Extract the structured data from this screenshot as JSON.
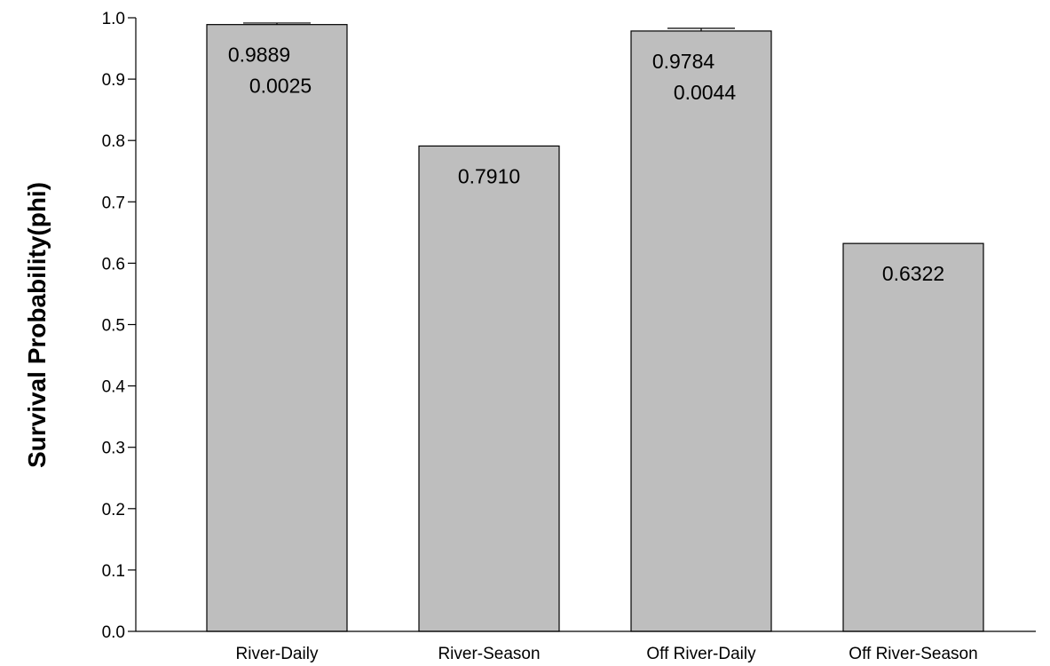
{
  "chart_data": {
    "type": "bar",
    "categories": [
      "River-Daily",
      "River-Season",
      "Off River-Daily",
      "Off River-Season"
    ],
    "values": [
      0.9889,
      0.791,
      0.9784,
      0.6322
    ],
    "errors": [
      0.0025,
      null,
      0.0044,
      null
    ],
    "value_labels": [
      "0.9889",
      "0.7910",
      "0.9784",
      "0.6322"
    ],
    "error_labels": [
      "0.0025",
      "",
      "0.0044",
      ""
    ],
    "title": "",
    "xlabel": "",
    "ylabel": "Survival Probability(phi)",
    "ylim": [
      0,
      1.0
    ],
    "yticks": [
      "0.0",
      "0.1",
      "0.2",
      "0.3",
      "0.4",
      "0.5",
      "0.6",
      "0.7",
      "0.8",
      "0.9",
      "1.0"
    ],
    "grid": false,
    "legend": "none",
    "bar_color": "#bebebe",
    "edge_color": "#000000"
  }
}
